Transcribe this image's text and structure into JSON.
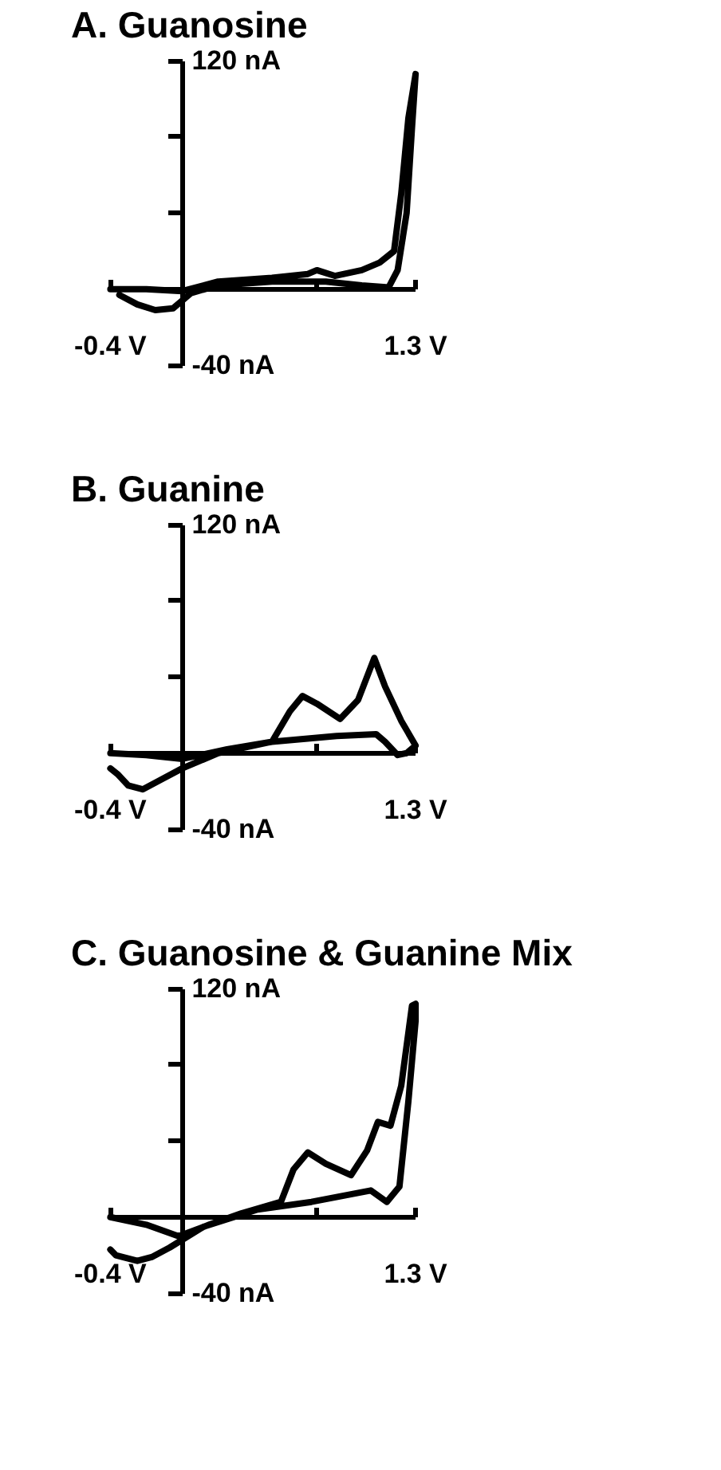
{
  "chart_data": [
    {
      "type": "line",
      "title": "A. Guanosine",
      "xlim": [
        -0.4,
        1.3
      ],
      "ylim": [
        -40,
        120
      ],
      "xticks": [
        {
          "value": -0.4,
          "label": "-0.4 V"
        },
        {
          "value": 0.75,
          "label": null
        },
        {
          "value": 1.3,
          "label": "1.3 V"
        }
      ],
      "yticks": [
        {
          "value": -40,
          "label": "-40 nA"
        },
        {
          "value": 40,
          "label": null
        },
        {
          "value": 80,
          "label": null
        },
        {
          "value": 120,
          "label": "120 nA"
        }
      ],
      "grid": false,
      "marker": "none",
      "line_style": "solid",
      "series": [
        {
          "color": "#000000",
          "x": [
            -0.4,
            -0.2,
            0,
            0.2,
            0.5,
            0.7,
            0.75,
            0.85,
            1.0,
            1.1,
            1.18,
            1.22,
            1.26,
            1.3,
            1.28,
            1.25,
            1.2,
            1.15,
            1.0,
            0.8,
            0.5,
            0.2,
            0.05,
            -0.05,
            -0.15,
            -0.25,
            -0.35
          ],
          "values": [
            0,
            0,
            -1,
            4,
            6,
            8,
            10,
            7,
            10,
            14,
            20,
            50,
            90,
            113,
            85,
            40,
            10,
            1,
            2,
            4,
            4,
            2,
            -2,
            -10,
            -11,
            -8,
            -3
          ]
        }
      ]
    },
    {
      "type": "line",
      "title": "B. Guanine",
      "xlim": [
        -0.4,
        1.3
      ],
      "ylim": [
        -40,
        120
      ],
      "xticks": [
        {
          "value": -0.4,
          "label": "-0.4 V"
        },
        {
          "value": 0.75,
          "label": null
        },
        {
          "value": 1.3,
          "label": "1.3 V"
        }
      ],
      "yticks": [
        {
          "value": -40,
          "label": "-40 nA"
        },
        {
          "value": 40,
          "label": null
        },
        {
          "value": 80,
          "label": null
        },
        {
          "value": 120,
          "label": "120 nA"
        }
      ],
      "grid": false,
      "marker": "none",
      "line_style": "solid",
      "series": [
        {
          "color": "#000000",
          "x": [
            -0.4,
            -0.2,
            0,
            0.25,
            0.5,
            0.6,
            0.67,
            0.75,
            0.88,
            0.98,
            1.07,
            1.13,
            1.22,
            1.3,
            1.25,
            1.2,
            1.13,
            1.08,
            0.86,
            0.5,
            0.2,
            0,
            -0.12,
            -0.22,
            -0.3,
            -0.36,
            -0.4
          ],
          "values": [
            0,
            -1,
            -3,
            2,
            6,
            22,
            30,
            26,
            18,
            28,
            50,
            35,
            17,
            4,
            0,
            -1,
            6,
            10,
            9,
            6,
            0,
            -8,
            -14,
            -19,
            -17,
            -11,
            -8
          ]
        }
      ]
    },
    {
      "type": "line",
      "title": "C. Guanosine & Guanine Mix",
      "xlim": [
        -0.4,
        1.3
      ],
      "ylim": [
        -40,
        120
      ],
      "xticks": [
        {
          "value": -0.4,
          "label": "-0.4 V"
        },
        {
          "value": 0.75,
          "label": null
        },
        {
          "value": 1.3,
          "label": "1.3 V"
        }
      ],
      "yticks": [
        {
          "value": -40,
          "label": "-40 nA"
        },
        {
          "value": 40,
          "label": null
        },
        {
          "value": 80,
          "label": null
        },
        {
          "value": 120,
          "label": "120 nA"
        }
      ],
      "grid": false,
      "marker": "none",
      "line_style": "solid",
      "series": [
        {
          "color": "#000000",
          "x": [
            -0.4,
            -0.2,
            -0.02,
            0.15,
            0.33,
            0.55,
            0.62,
            0.7,
            0.8,
            0.94,
            1.03,
            1.09,
            1.16,
            1.22,
            1.28,
            1.3,
            1.3,
            1.26,
            1.21,
            1.14,
            1.05,
            0.72,
            0.42,
            0.12,
            -0.07,
            -0.17,
            -0.25,
            -0.37,
            -0.4
          ],
          "values": [
            0,
            -4,
            -10,
            -4,
            2,
            8,
            25,
            34,
            28,
            22,
            35,
            50,
            48,
            69,
            111,
            112,
            103,
            61,
            16,
            8,
            14,
            8,
            4,
            -5,
            -16,
            -21,
            -23,
            -20,
            -17
          ]
        }
      ]
    }
  ]
}
